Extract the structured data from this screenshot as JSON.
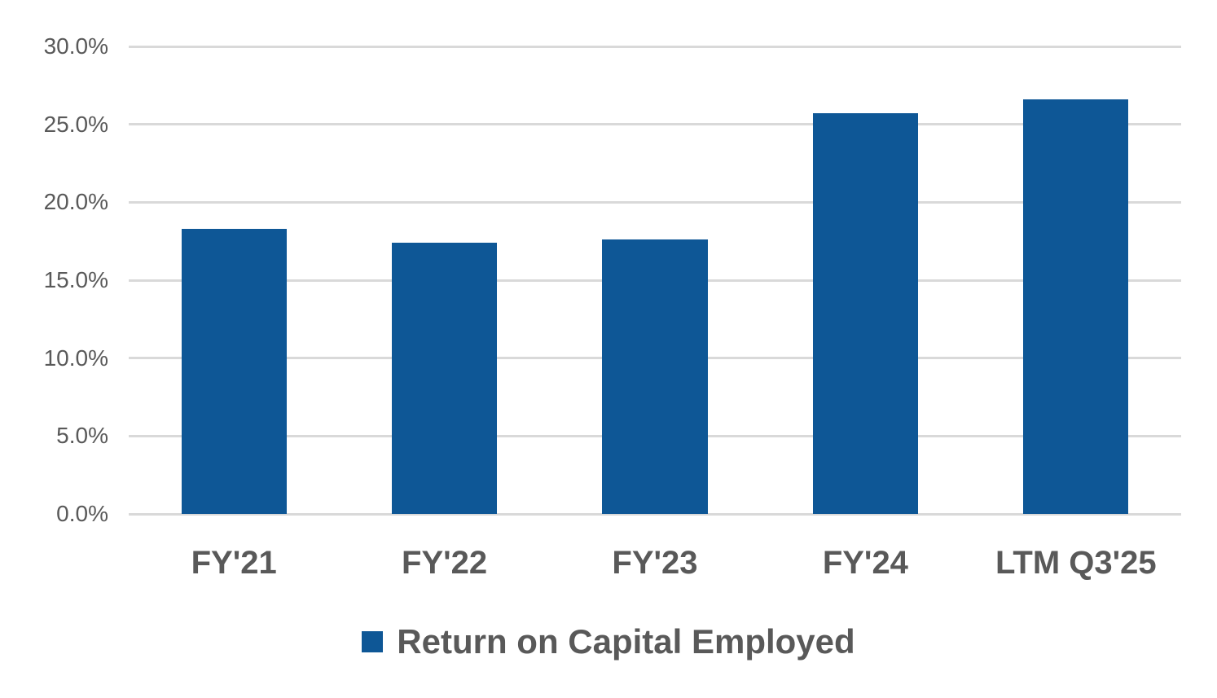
{
  "chart_data": {
    "type": "bar",
    "title": "",
    "categories": [
      "FY'21",
      "FY'22",
      "FY'23",
      "FY'24",
      "LTM Q3'25"
    ],
    "series": [
      {
        "name": "Return on Capital Employed",
        "values": [
          18.3,
          17.4,
          17.6,
          25.7,
          26.6
        ],
        "color": "#0E5796"
      }
    ],
    "value_unit": "%",
    "xlabel": "",
    "ylabel": "",
    "ylim": [
      0,
      30
    ],
    "yticks": [
      0,
      5,
      10,
      15,
      20,
      25,
      30
    ],
    "ytick_labels": [
      "0.0%",
      "5.0%",
      "10.0%",
      "15.0%",
      "20.0%",
      "25.0%",
      "30.0%"
    ],
    "grid": "horizontal",
    "legend_position": "bottom",
    "bar_gap_ratio": 0.5
  },
  "legend": {
    "items": [
      {
        "label": "Return on Capital Employed",
        "swatch_color": "#0E5796"
      }
    ]
  },
  "colors": {
    "bar": "#0E5796",
    "gridline": "#D9D9D9",
    "axis_text": "#595959",
    "background": "#FFFFFF"
  }
}
